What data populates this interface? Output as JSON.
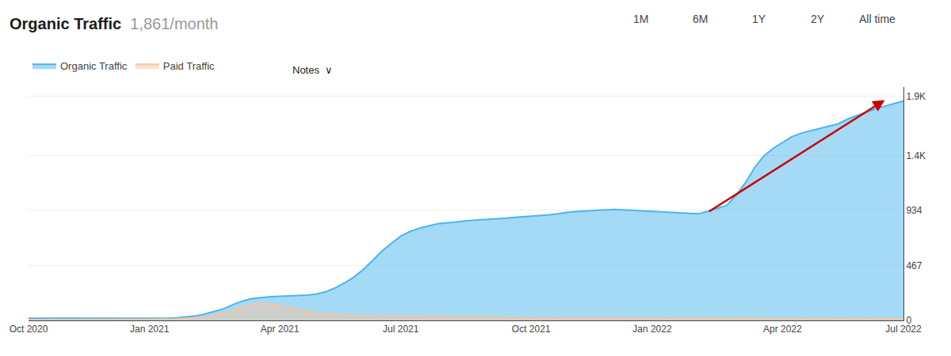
{
  "chart_data": {
    "type": "area",
    "title": "Organic Traffic",
    "subtitle": "1,861/month",
    "annotations": [
      {
        "text": "1M"
      },
      {
        "text": "6M"
      },
      {
        "text": "1Y"
      },
      {
        "text": "2Y"
      },
      {
        "text": "All time"
      },
      {
        "text": "Notes  ∨"
      },
      {
        "x": 92,
        "y": 1870,
        "x_start": 73,
        "y_start": 918,
        "color": "#cc0000"
      }
    ],
    "x": [
      0,
      1,
      2,
      3,
      4,
      5,
      6,
      7,
      8,
      9,
      10,
      11,
      12,
      13,
      14,
      15,
      16,
      17,
      18,
      19,
      20,
      21,
      22,
      23,
      24,
      25,
      26,
      27,
      28,
      29,
      30,
      31,
      32,
      33,
      34,
      35,
      36,
      37,
      38,
      39,
      40,
      41,
      42,
      43,
      44,
      45,
      46,
      47,
      48,
      49,
      50,
      51,
      52,
      53,
      54,
      55,
      56,
      57,
      58,
      59,
      60,
      61,
      62,
      63,
      64,
      65,
      66,
      67,
      68,
      69,
      70,
      71,
      72,
      73,
      74,
      75,
      76,
      77,
      78,
      79,
      80,
      81,
      82,
      83,
      84,
      85,
      86,
      87,
      88,
      89,
      90,
      91,
      92,
      93,
      94
    ],
    "series": [
      {
        "name": "Organic Traffic",
        "color": "#4ab5ee",
        "values": [
          18,
          18,
          17,
          18,
          17,
          16,
          17,
          16,
          17,
          16,
          17,
          16,
          18,
          17,
          18,
          19,
          22,
          28,
          38,
          55,
          75,
          100,
          135,
          165,
          185,
          195,
          202,
          205,
          208,
          210,
          215,
          225,
          245,
          278,
          320,
          370,
          435,
          510,
          590,
          655,
          715,
          755,
          782,
          802,
          820,
          828,
          838,
          844,
          850,
          854,
          858,
          866,
          873,
          878,
          882,
          888,
          896,
          906,
          918,
          924,
          930,
          934,
          938,
          942,
          938,
          933,
          929,
          926,
          922,
          918,
          912,
          908,
          904,
          926,
          948,
          975,
          1060,
          1165,
          1295,
          1395,
          1460,
          1510,
          1558,
          1588,
          1608,
          1628,
          1648,
          1668,
          1708,
          1738,
          1768,
          1795,
          1818,
          1838,
          1861
        ]
      },
      {
        "name": "Paid Traffic",
        "color": "#f5c4a0",
        "values": [
          5,
          5,
          5,
          5,
          5,
          5,
          5,
          6,
          6,
          6,
          7,
          7,
          8,
          8,
          9,
          10,
          12,
          16,
          20,
          28,
          45,
          65,
          92,
          118,
          138,
          148,
          138,
          122,
          108,
          92,
          76,
          62,
          52,
          46,
          42,
          40,
          38,
          37,
          36,
          35,
          34,
          33,
          32,
          31,
          30,
          30,
          29,
          28,
          28,
          27,
          27,
          26,
          26,
          25,
          25,
          24,
          24,
          24,
          23,
          23,
          22,
          22,
          22,
          22,
          21,
          21,
          20,
          20,
          20,
          19,
          19,
          19,
          18,
          18,
          18,
          18,
          17,
          17,
          17,
          16,
          16,
          16,
          16,
          15,
          15,
          15,
          15,
          14,
          14,
          14,
          14,
          14,
          13,
          13,
          13
        ]
      }
    ],
    "xlim": [
      0,
      94
    ],
    "xticks": [
      {
        "value": 0,
        "label": "Oct 2020"
      },
      {
        "value": 13,
        "label": "Jan 2021"
      },
      {
        "value": 27,
        "label": "Apr 2021"
      },
      {
        "value": 40,
        "label": "Jul 2021"
      },
      {
        "value": 54,
        "label": "Oct 2021"
      },
      {
        "value": 67,
        "label": "Jan 2022"
      },
      {
        "value": 81,
        "label": "Apr 2022"
      },
      {
        "value": 94,
        "label": "Jul 2022"
      }
    ],
    "ylim": [
      0,
      1980
    ],
    "yticks": [
      0,
      467,
      934,
      {
        "value": 1400,
        "label": "1.4K"
      },
      {
        "value": 1900,
        "label": "1.9K"
      }
    ],
    "grid": true,
    "legend": "top left"
  }
}
